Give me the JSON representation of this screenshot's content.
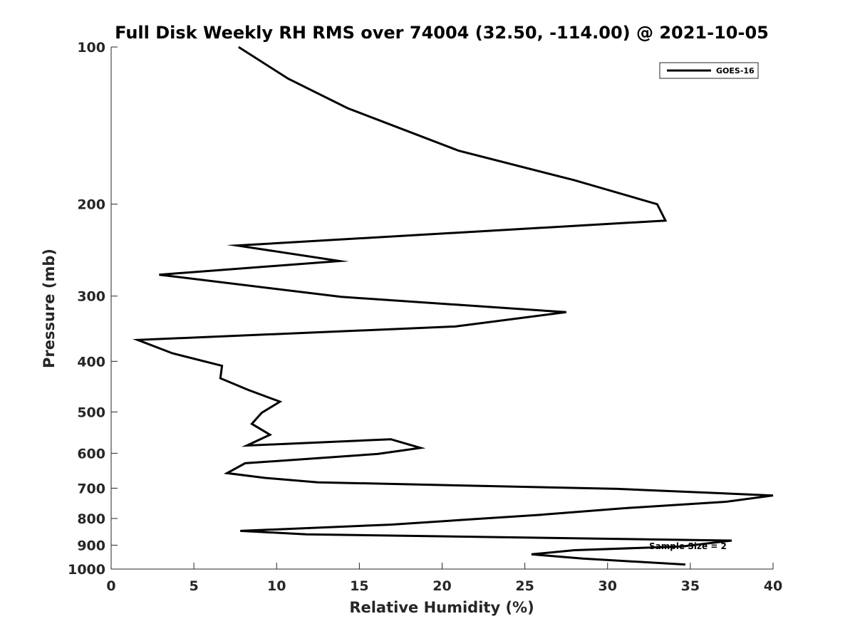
{
  "chart_data": {
    "type": "line",
    "title": "Full Disk Weekly RH RMS over 74004 (32.50, -114.00) @ 2021-10-05",
    "xlabel": "Relative Humidity (%)",
    "ylabel": "Pressure (mb)",
    "xlim": [
      0,
      40
    ],
    "ylim": [
      100,
      1000
    ],
    "yscale": "log",
    "y_reversed": true,
    "x_ticks": [
      0,
      5,
      10,
      15,
      20,
      25,
      30,
      35,
      40
    ],
    "y_ticks": [
      100,
      200,
      300,
      400,
      500,
      600,
      700,
      800,
      900,
      1000
    ],
    "grid": false,
    "legend_location": "top-right",
    "annotation": "Sample Size = 2",
    "series": [
      {
        "name": "GOES-16",
        "color": "#000000",
        "points": [
          [
            7.7,
            100
          ],
          [
            10.7,
            115
          ],
          [
            14.3,
            131
          ],
          [
            21.0,
            158
          ],
          [
            28.0,
            180
          ],
          [
            33.0,
            200
          ],
          [
            33.5,
            215
          ],
          [
            7.6,
            240
          ],
          [
            13.8,
            257
          ],
          [
            2.9,
            273
          ],
          [
            13.9,
            301
          ],
          [
            27.5,
            322
          ],
          [
            20.8,
            343
          ],
          [
            1.6,
            364
          ],
          [
            3.7,
            386
          ],
          [
            6.7,
            408
          ],
          [
            6.6,
            431
          ],
          [
            8.3,
            454
          ],
          [
            10.2,
            478
          ],
          [
            9.1,
            502
          ],
          [
            8.5,
            527
          ],
          [
            9.6,
            553
          ],
          [
            8.2,
            580
          ],
          [
            16.9,
            564
          ],
          [
            18.7,
            586
          ],
          [
            16.1,
            602
          ],
          [
            8.1,
            627
          ],
          [
            7.0,
            655
          ],
          [
            9.3,
            669
          ],
          [
            12.5,
            682
          ],
          [
            30.6,
            702
          ],
          [
            40.0,
            723
          ],
          [
            37.2,
            743
          ],
          [
            30.9,
            765
          ],
          [
            26.0,
            787
          ],
          [
            22.0,
            802
          ],
          [
            16.9,
            822
          ],
          [
            7.8,
            845
          ],
          [
            11.8,
            858
          ],
          [
            37.5,
            882
          ],
          [
            34.5,
            905
          ],
          [
            28.0,
            920
          ],
          [
            25.4,
            937
          ],
          [
            28.5,
            955
          ],
          [
            34.7,
            980
          ]
        ]
      }
    ]
  }
}
